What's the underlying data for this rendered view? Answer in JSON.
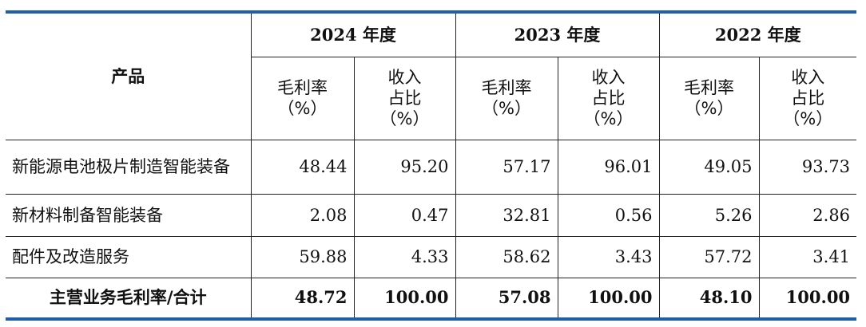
{
  "header": {
    "product": "产品",
    "years": [
      "2024 年度",
      "2023 年度",
      "2022 年度"
    ],
    "col_margin": [
      "毛利率",
      "（%）"
    ],
    "col_share": [
      "收入",
      "占比",
      "（%）"
    ]
  },
  "rows": [
    {
      "name": "新能源电池极片制造智能装备",
      "v": [
        "48.44",
        "95.20",
        "57.17",
        "96.01",
        "49.05",
        "93.73"
      ]
    },
    {
      "name": "新材料制备智能装备",
      "v": [
        "2.08",
        "0.47",
        "32.81",
        "0.56",
        "5.26",
        "2.86"
      ]
    },
    {
      "name": "配件及改造服务",
      "v": [
        "59.88",
        "4.33",
        "58.62",
        "3.43",
        "57.72",
        "3.41"
      ]
    }
  ],
  "total": {
    "name": "主营业务毛利率/合计",
    "v": [
      "48.72",
      "100.00",
      "57.08",
      "100.00",
      "48.10",
      "100.00"
    ]
  },
  "colors": {
    "rule": "#1f5fa8"
  }
}
